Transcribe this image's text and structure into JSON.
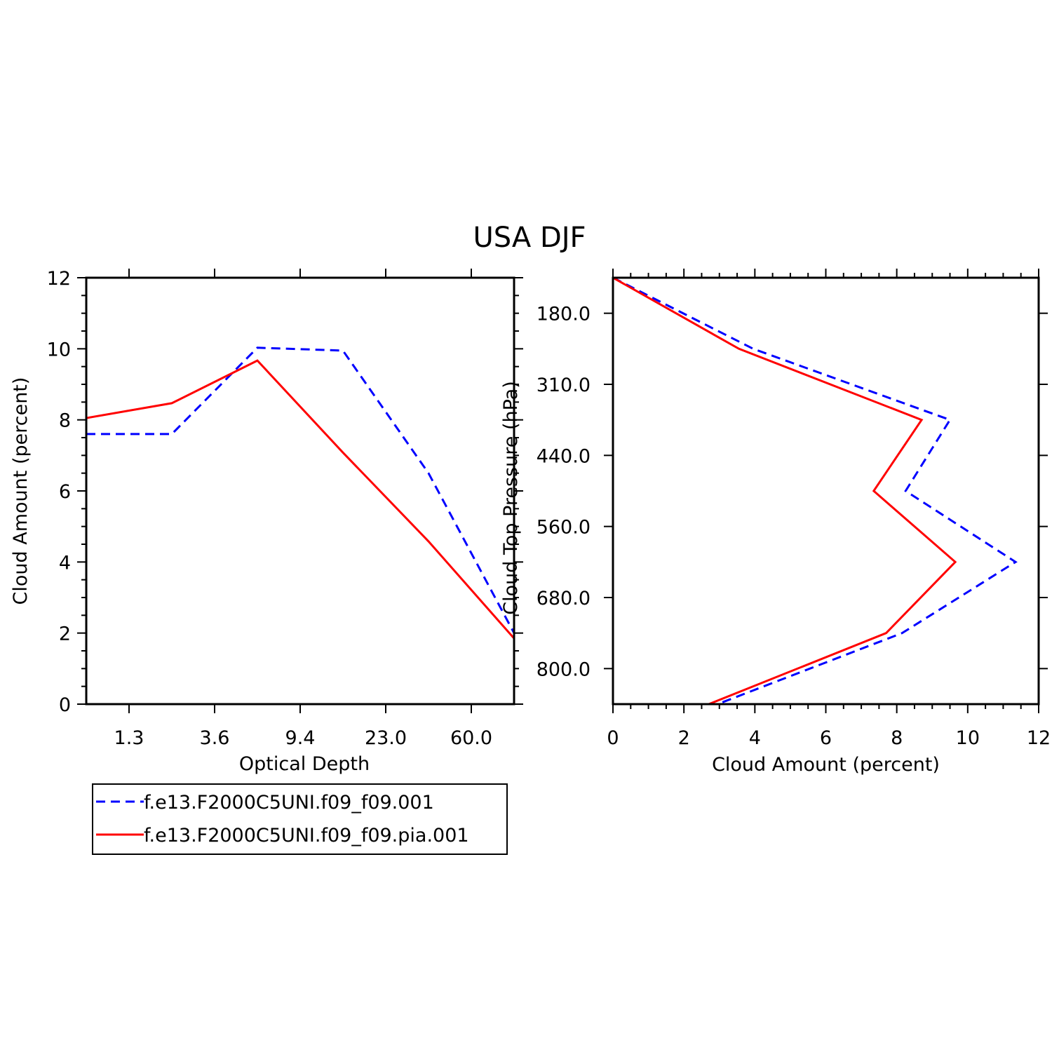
{
  "figure_title": "USA DJF",
  "colors": {
    "series_dashed": "#0000ff",
    "series_solid": "#ff0000",
    "axes": "#000000",
    "background": "#ffffff"
  },
  "legend": {
    "entries": [
      {
        "label": "f.e13.F2000C5UNI.f09_f09.001",
        "color": "#0000ff",
        "style": "dashed"
      },
      {
        "label": "f.e13.F2000C5UNI.f09_f09.pia.001",
        "color": "#ff0000",
        "style": "solid"
      }
    ]
  },
  "chart_data": [
    {
      "type": "line",
      "xlabel": "Optical Depth",
      "ylabel": "Cloud Amount (percent)",
      "x_tick_labels": [
        "1.3",
        "3.6",
        "9.4",
        "23.0",
        "60.0"
      ],
      "x_tick_positions": [
        1,
        3,
        5,
        7,
        9
      ],
      "xlim": [
        0,
        10
      ],
      "ylim": [
        0,
        12
      ],
      "y_ticks": [
        0,
        2,
        4,
        6,
        8,
        10,
        12
      ],
      "grid": false,
      "legend_position": "below",
      "series": [
        {
          "name": "f.e13.F2000C5UNI.f09_f09.001",
          "color": "#0000ff",
          "style": "dashed",
          "x": [
            0,
            2,
            4,
            6,
            8,
            10
          ],
          "y": [
            7.6,
            7.6,
            10.03,
            9.95,
            6.5,
            2.0
          ]
        },
        {
          "name": "f.e13.F2000C5UNI.f09_f09.pia.001",
          "color": "#ff0000",
          "style": "solid",
          "x": [
            0,
            2,
            4,
            6,
            8,
            10
          ],
          "y": [
            8.05,
            8.47,
            9.67,
            7.08,
            4.58,
            1.85
          ]
        }
      ]
    },
    {
      "type": "line",
      "xlabel": "Cloud Amount (percent)",
      "ylabel": "Cloud Top Pressure (hPa)",
      "xlim": [
        0,
        12
      ],
      "x_ticks": [
        0,
        2,
        4,
        6,
        8,
        10,
        12
      ],
      "y_tick_labels": [
        "180.0",
        "310.0",
        "440.0",
        "560.0",
        "680.0",
        "800.0"
      ],
      "y_tick_positions": [
        1,
        3,
        5,
        7,
        9,
        11
      ],
      "ylim": [
        0,
        12
      ],
      "y_inverted": true,
      "grid": false,
      "series": [
        {
          "name": "f.e13.F2000C5UNI.f09_f09.001",
          "color": "#0000ff",
          "style": "dashed",
          "x": [
            0,
            3.95,
            9.5,
            8.25,
            11.35,
            8.15,
            2.95
          ],
          "y": [
            0,
            2,
            4,
            6,
            8,
            10,
            12
          ]
        },
        {
          "name": "f.e13.F2000C5UNI.f09_f09.pia.001",
          "color": "#ff0000",
          "style": "solid",
          "x": [
            0,
            3.55,
            8.7,
            7.35,
            9.65,
            7.7,
            2.7
          ],
          "y": [
            0,
            2,
            4,
            6,
            8,
            10,
            12
          ]
        }
      ]
    }
  ]
}
